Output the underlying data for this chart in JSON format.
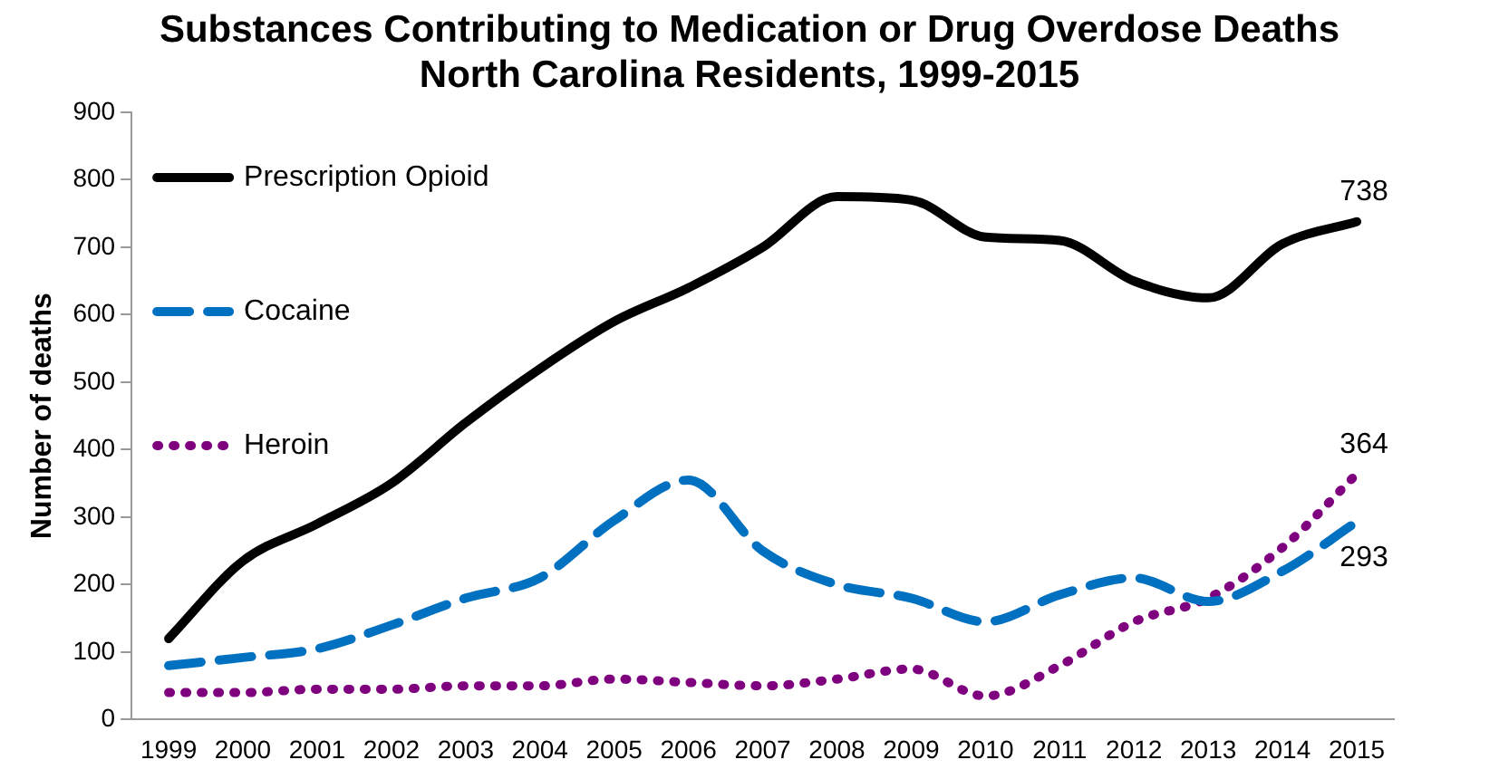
{
  "chart_data": {
    "type": "line",
    "title": "Substances Contributing to Medication or Drug Overdose Deaths",
    "subtitle": "North Carolina Residents, 1999-2015",
    "ylabel": "Number of deaths",
    "categories": [
      "1999",
      "2000",
      "2001",
      "2002",
      "2003",
      "2004",
      "2005",
      "2006",
      "2007",
      "2008",
      "2009",
      "2010",
      "2011",
      "2012",
      "2013",
      "2014",
      "2015"
    ],
    "series": [
      {
        "name": "Prescription Opioid",
        "color": "#000000",
        "line_style": "solid",
        "values": [
          120,
          235,
          290,
          350,
          440,
          520,
          590,
          640,
          700,
          775,
          770,
          715,
          710,
          650,
          625,
          705,
          738
        ],
        "value_labels": [
          null,
          null,
          null,
          null,
          null,
          null,
          null,
          null,
          null,
          null,
          null,
          null,
          null,
          null,
          null,
          null,
          "738"
        ]
      },
      {
        "name": "Cocaine",
        "color": "#0070c0",
        "line_style": "dashed",
        "values": [
          80,
          92,
          105,
          140,
          180,
          210,
          295,
          355,
          250,
          200,
          180,
          145,
          185,
          210,
          175,
          220,
          293
        ],
        "value_labels": [
          null,
          null,
          null,
          null,
          null,
          null,
          null,
          null,
          null,
          null,
          null,
          null,
          null,
          null,
          null,
          null,
          "293"
        ]
      },
      {
        "name": "Heroin",
        "color": "#7f007f",
        "line_style": "dotted",
        "values": [
          40,
          40,
          45,
          45,
          50,
          50,
          60,
          55,
          50,
          60,
          75,
          35,
          80,
          145,
          180,
          255,
          364
        ],
        "value_labels": [
          null,
          null,
          null,
          null,
          null,
          null,
          null,
          null,
          null,
          null,
          null,
          null,
          null,
          null,
          null,
          null,
          "364"
        ]
      }
    ],
    "ylim": [
      0,
      900
    ],
    "yticks": [
      0,
      100,
      200,
      300,
      400,
      500,
      600,
      700,
      800,
      900
    ],
    "grid": false,
    "legend": "top left",
    "marker": "none"
  }
}
